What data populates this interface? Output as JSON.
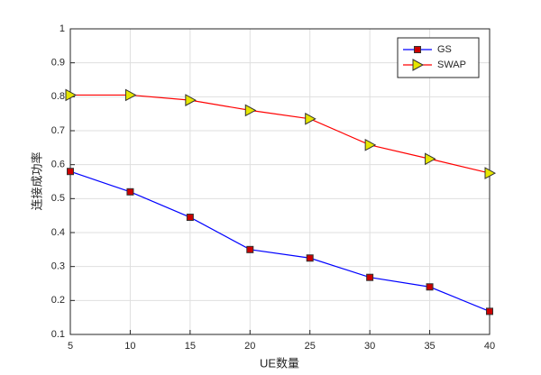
{
  "chart_data": {
    "type": "line",
    "xlabel": "UE数量",
    "ylabel": "连接成功率",
    "x": [
      5,
      10,
      15,
      20,
      25,
      30,
      35,
      40
    ],
    "series": [
      {
        "name": "GS",
        "color": "#0000ff",
        "marker": "square",
        "marker_color": "#cc0000",
        "values": [
          0.58,
          0.52,
          0.445,
          0.35,
          0.325,
          0.268,
          0.24,
          0.168
        ]
      },
      {
        "name": "SWAP",
        "color": "#ff0000",
        "marker": "triangle-right",
        "marker_color": "#e6e600",
        "values": [
          0.805,
          0.805,
          0.79,
          0.76,
          0.735,
          0.658,
          0.617,
          0.575
        ]
      }
    ],
    "xlim": [
      5,
      40
    ],
    "xticks": [
      5,
      10,
      15,
      20,
      25,
      30,
      35,
      40
    ],
    "ylim": [
      0.1,
      1
    ],
    "yticks": [
      0.1,
      0.2,
      0.3,
      0.4,
      0.5,
      0.6,
      0.7,
      0.8,
      0.9,
      1
    ],
    "grid": true,
    "legend": "northeast"
  }
}
